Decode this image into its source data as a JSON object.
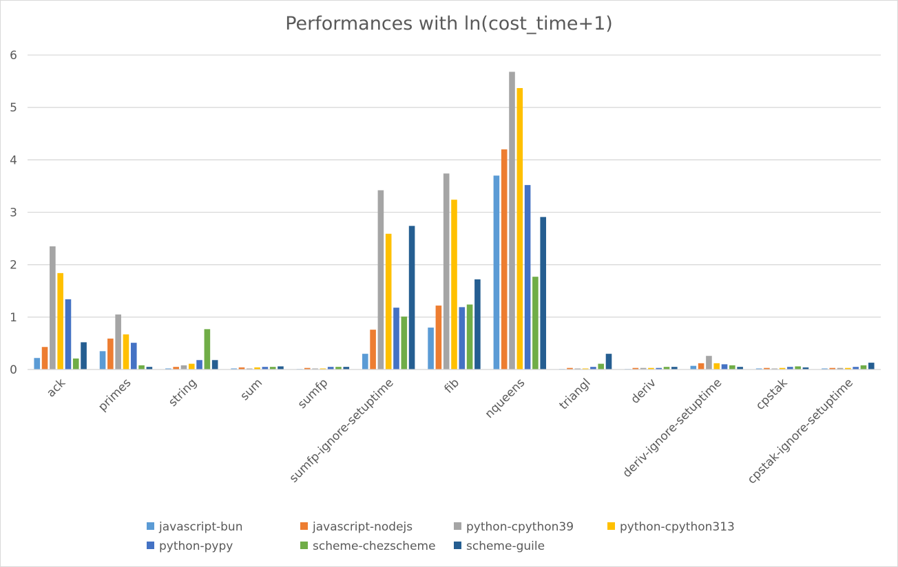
{
  "chart_data": {
    "type": "bar",
    "title": "Performances with ln(cost_time+1)",
    "categories": [
      "ack",
      "primes",
      "string",
      "sum",
      "sumfp",
      "sumfp-ignore-setuptime",
      "fib",
      "nqueens",
      "triangl",
      "deriv",
      "deriv-ignore-setuptime",
      "cpstak",
      "cpstak-ignore-setuptime"
    ],
    "series": [
      {
        "name": "javascript-bun",
        "color": "#5b9bd5",
        "values": [
          0.22,
          0.35,
          0.02,
          0.02,
          0.01,
          0.3,
          0.8,
          3.7,
          0.01,
          0.01,
          0.07,
          0.02,
          0.02
        ]
      },
      {
        "name": "javascript-nodejs",
        "color": "#ed7d31",
        "values": [
          0.43,
          0.59,
          0.05,
          0.04,
          0.03,
          0.76,
          1.22,
          4.2,
          0.03,
          0.03,
          0.12,
          0.03,
          0.03
        ]
      },
      {
        "name": "python-cpython39",
        "color": "#a5a5a5",
        "values": [
          2.35,
          1.05,
          0.08,
          0.02,
          0.02,
          3.42,
          3.74,
          5.68,
          0.02,
          0.03,
          0.26,
          0.02,
          0.03
        ]
      },
      {
        "name": "python-cpython313",
        "color": "#ffc000",
        "values": [
          1.84,
          0.67,
          0.11,
          0.04,
          0.02,
          2.59,
          3.24,
          5.37,
          0.02,
          0.03,
          0.12,
          0.03,
          0.03
        ]
      },
      {
        "name": "python-pypy",
        "color": "#4472c4",
        "values": [
          1.34,
          0.51,
          0.18,
          0.05,
          0.05,
          1.18,
          1.19,
          3.52,
          0.05,
          0.03,
          0.1,
          0.05,
          0.05
        ]
      },
      {
        "name": "scheme-chezscheme",
        "color": "#70ad47",
        "values": [
          0.21,
          0.08,
          0.77,
          0.05,
          0.05,
          1.01,
          1.24,
          1.77,
          0.11,
          0.05,
          0.08,
          0.06,
          0.08
        ]
      },
      {
        "name": "scheme-guile",
        "color": "#255e91",
        "values": [
          0.52,
          0.05,
          0.18,
          0.06,
          0.05,
          2.74,
          1.72,
          2.91,
          0.3,
          0.05,
          0.05,
          0.04,
          0.13
        ]
      }
    ],
    "ylim": [
      0,
      6
    ],
    "yticks": [
      "0",
      "1",
      "2",
      "3",
      "4",
      "5",
      "6"
    ],
    "grid": true,
    "legend_position": "bottom"
  }
}
